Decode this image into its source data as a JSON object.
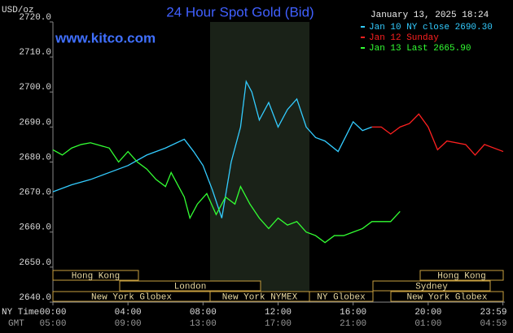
{
  "chart_data": {
    "type": "line",
    "title": "24 Hour Spot Gold (Bid)",
    "timestamp": "January 13, 2025 18:24",
    "site": "www.kitco.com",
    "y_unit": "USD/oz",
    "xlim": [
      0,
      24
    ],
    "ylim": [
      2640,
      2720
    ],
    "xticks": [
      {
        "value": 0,
        "label": "00:00"
      },
      {
        "value": 4,
        "label": "04:00"
      },
      {
        "value": 8,
        "label": "08:00"
      },
      {
        "value": 12,
        "label": "12:00"
      },
      {
        "value": 16,
        "label": "16:00"
      },
      {
        "value": 20,
        "label": "20:00"
      },
      {
        "value": 23.983,
        "label": "23:59"
      }
    ],
    "x_label": "NY Time",
    "x2_label": "GMT",
    "x2_tick_labels": [
      "05:00",
      "09:00",
      "13:00",
      "17:00",
      "21:00",
      "01:00",
      "04:59"
    ],
    "yticks": [
      {
        "value": 2640,
        "label": "2640.0"
      },
      {
        "value": 2650,
        "label": "2650.0"
      },
      {
        "value": 2660,
        "label": "2660.0"
      },
      {
        "value": 2670,
        "label": "2670.0"
      },
      {
        "value": 2680,
        "label": "2680.0"
      },
      {
        "value": 2690,
        "label": "2690.0"
      },
      {
        "value": 2700,
        "label": "2700.0"
      },
      {
        "value": 2710,
        "label": "2710.0"
      },
      {
        "value": 2720,
        "label": "2720.0"
      }
    ],
    "sessions": [
      "Hong Kong",
      "Hong Kong",
      "London",
      "Sydney",
      "New York Globex",
      "New York NYMEX",
      "NY Globex",
      "New York Globex"
    ],
    "series": [
      {
        "name": "Jan 10 NY close 2690.30",
        "color": "#33ccff",
        "x": [
          0,
          1,
          2,
          3,
          4,
          5,
          6,
          7,
          7.5,
          8,
          8.5,
          9,
          9.5,
          10,
          10.3,
          10.6,
          11,
          11.5,
          12,
          12.5,
          13,
          13.5,
          14,
          14.5,
          15.2,
          16,
          16.5,
          17
        ],
        "values": [
          2671.5,
          2673.5,
          2675,
          2677,
          2679,
          2682,
          2684,
          2686.5,
          2683,
          2679,
          2672,
          2664,
          2680,
          2690,
          2703,
          2700,
          2692,
          2697,
          2690,
          2695,
          2698,
          2690,
          2687,
          2686,
          2683,
          2691.5,
          2689,
          2690
        ]
      },
      {
        "name": "Jan 12 Sunday",
        "color": "#ff2020",
        "x": [
          17,
          17.5,
          18,
          18.5,
          19,
          19.5,
          20,
          20.5,
          21,
          22,
          22.5,
          23,
          24
        ],
        "values": [
          2690,
          2690,
          2688,
          2690,
          2691,
          2693.7,
          2690,
          2683.5,
          2686,
          2685,
          2682,
          2685,
          2683
        ]
      },
      {
        "name": "Jan 13 Last 2665.90",
        "color": "#33ff33",
        "x": [
          0,
          0.5,
          1,
          1.5,
          2,
          3,
          3.5,
          4,
          4.5,
          5,
          5.5,
          6,
          6.3,
          7,
          7.3,
          7.7,
          8.2,
          8.7,
          9.2,
          9.7,
          10,
          10.5,
          11,
          11.5,
          12,
          12.5,
          13,
          13.5,
          14,
          14.5,
          15,
          15.5,
          16,
          16.5,
          17,
          18,
          18.5
        ],
        "values": [
          2683.5,
          2682,
          2684,
          2685,
          2685.5,
          2684,
          2680,
          2683,
          2680,
          2678,
          2675,
          2673,
          2677,
          2670,
          2664,
          2668,
          2671,
          2665,
          2670,
          2668,
          2673,
          2668,
          2664,
          2661,
          2664,
          2662,
          2663,
          2660,
          2659,
          2657,
          2659,
          2659,
          2660,
          2661,
          2663,
          2663,
          2665.9
        ]
      }
    ]
  }
}
